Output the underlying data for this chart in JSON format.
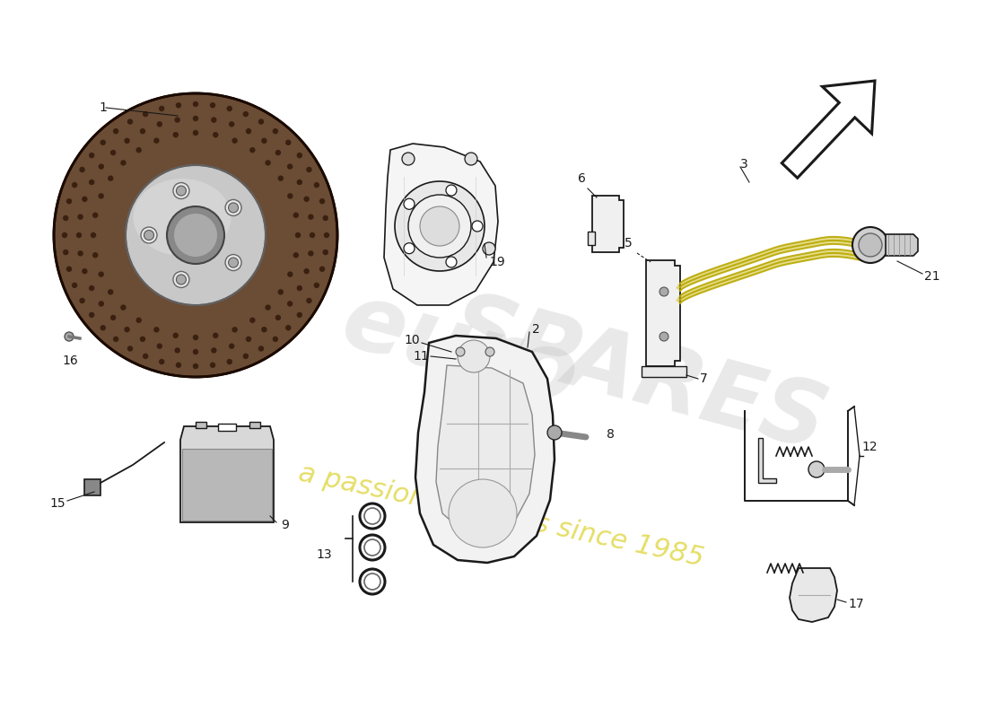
{
  "bg_color": "#ffffff",
  "line_color": "#1a1a1a",
  "disc_face_color": "#6B4C35",
  "disc_edge_color": "#3a2a1a",
  "disc_rim_dark": "#2a1a0a",
  "disc_hat_color": "#b8b8b8",
  "disc_hat_light": "#d8d8d8",
  "disc_hole_color": "#555555",
  "disc_dot_color": "#3a2510",
  "watermark1_color": "#cccccc",
  "watermark2_color": "#d4c800",
  "brake_hose_color": "#b8a800",
  "caliper_fill": "#f2f2f2",
  "caliper_inner": "#e0e0e0",
  "knuckle_fill": "#f5f5f5",
  "part_nums": [
    "1",
    "2",
    "3",
    "5",
    "6",
    "7",
    "8",
    "9",
    "10",
    "11",
    "12",
    "13",
    "15",
    "16",
    "17",
    "19",
    "21"
  ]
}
